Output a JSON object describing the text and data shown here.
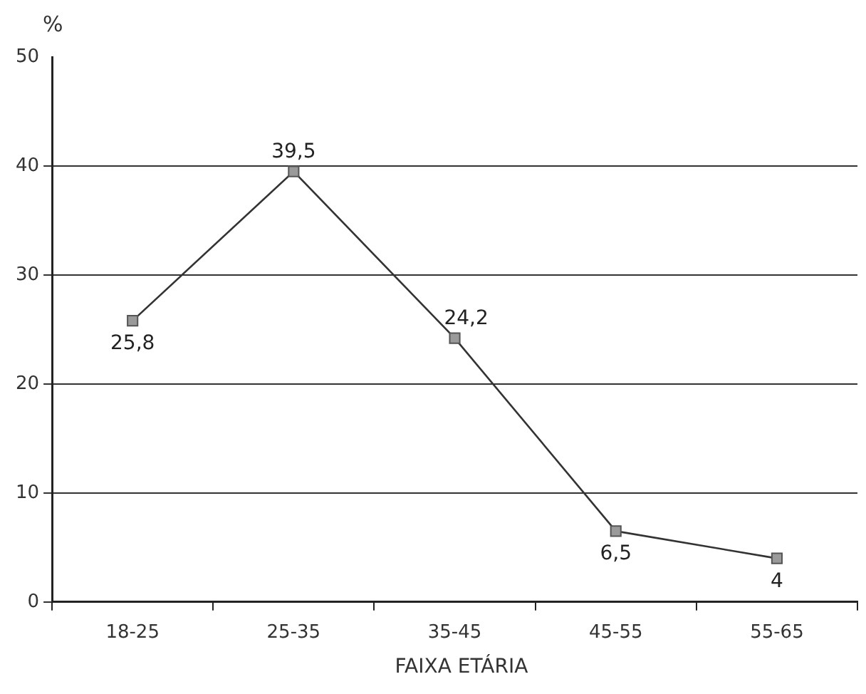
{
  "chart_data": {
    "type": "line",
    "xlabel": "FAIXA ETÁRIA",
    "ylabel": "%",
    "categories": [
      "18-25",
      "25-35",
      "35-45",
      "45-55",
      "55-65"
    ],
    "series": [
      {
        "color": "#9a9a9a",
        "values": [
          25.8,
          39.5,
          24.2,
          6.5,
          4
        ],
        "value_labels": [
          "25,8",
          "39,5",
          "24,2",
          "6,5",
          "4"
        ]
      }
    ],
    "ylim": [
      0,
      50
    ],
    "yticks": [
      0,
      10,
      20,
      30,
      40,
      50
    ],
    "grid": "y",
    "marker": "square",
    "line_style": "solid",
    "legend": false
  }
}
